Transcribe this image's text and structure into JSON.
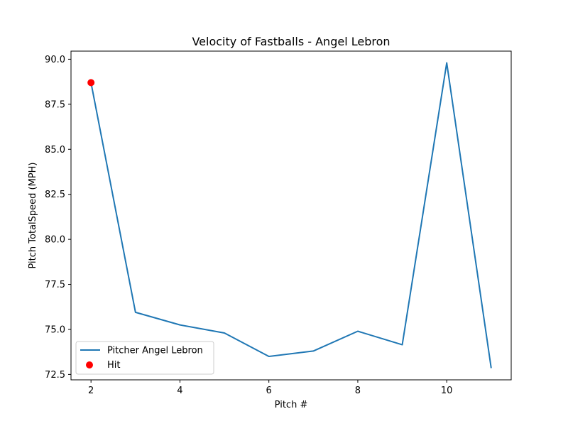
{
  "chart_data": {
    "type": "line",
    "title": "Velocity of Fastballs - Angel Lebron",
    "xlabel": "Pitch #",
    "ylabel": "Pitch TotalSpeed (MPH)",
    "xlim": [
      1.55,
      11.45
    ],
    "ylim": [
      72.2,
      90.45
    ],
    "xticks": [
      2,
      4,
      6,
      8,
      10
    ],
    "yticks": [
      72.5,
      75.0,
      77.5,
      80.0,
      82.5,
      85.0,
      87.5,
      90.0
    ],
    "x": [
      2,
      3,
      4,
      5,
      6,
      7,
      8,
      9,
      10,
      11
    ],
    "series": [
      {
        "name": "Pitcher Angel Lebron",
        "type": "line",
        "color": "#1f77b4",
        "values": [
          88.7,
          75.95,
          75.25,
          74.8,
          73.5,
          73.8,
          74.9,
          74.15,
          89.8,
          72.85
        ]
      },
      {
        "name": "Hit",
        "type": "scatter",
        "color": "#ff0000",
        "points": [
          {
            "x": 2,
            "y": 88.7
          }
        ]
      }
    ],
    "legend_position": "lower-left",
    "grid": false
  }
}
